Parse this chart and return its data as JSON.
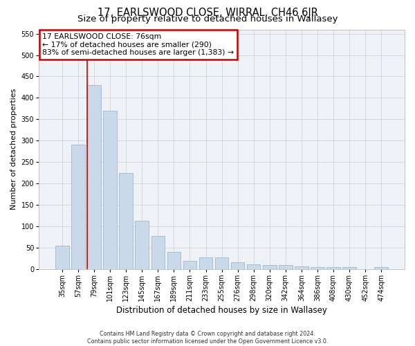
{
  "title": "17, EARLSWOOD CLOSE, WIRRAL, CH46 6JR",
  "subtitle": "Size of property relative to detached houses in Wallasey",
  "xlabel": "Distribution of detached houses by size in Wallasey",
  "ylabel": "Number of detached properties",
  "footer_line1": "Contains HM Land Registry data © Crown copyright and database right 2024.",
  "footer_line2": "Contains public sector information licensed under the Open Government Licence v3.0.",
  "categories": [
    "35sqm",
    "57sqm",
    "79sqm",
    "101sqm",
    "123sqm",
    "145sqm",
    "167sqm",
    "189sqm",
    "211sqm",
    "233sqm",
    "255sqm",
    "276sqm",
    "298sqm",
    "320sqm",
    "342sqm",
    "364sqm",
    "386sqm",
    "408sqm",
    "430sqm",
    "452sqm",
    "474sqm"
  ],
  "values": [
    55,
    290,
    430,
    370,
    225,
    113,
    77,
    40,
    18,
    27,
    27,
    16,
    10,
    9,
    9,
    6,
    4,
    4,
    4,
    0,
    5
  ],
  "bar_color": "#c9d9ea",
  "bar_edge_color": "#9fb8cc",
  "vline_color": "#cc0000",
  "vline_x_index": 2,
  "annotation_text_line1": "17 EARLSWOOD CLOSE: 76sqm",
  "annotation_text_line2": "← 17% of detached houses are smaller (290)",
  "annotation_text_line3": "83% of semi-detached houses are larger (1,383) →",
  "annotation_box_color": "#ffffff",
  "annotation_box_edge": "#cc0000",
  "ylim": [
    0,
    560
  ],
  "yticks": [
    0,
    50,
    100,
    150,
    200,
    250,
    300,
    350,
    400,
    450,
    500,
    550
  ],
  "title_fontsize": 10.5,
  "subtitle_fontsize": 9.5,
  "axis_label_fontsize": 8,
  "tick_fontsize": 7,
  "grid_color": "#cccccc",
  "background_color": "#eef2f7"
}
